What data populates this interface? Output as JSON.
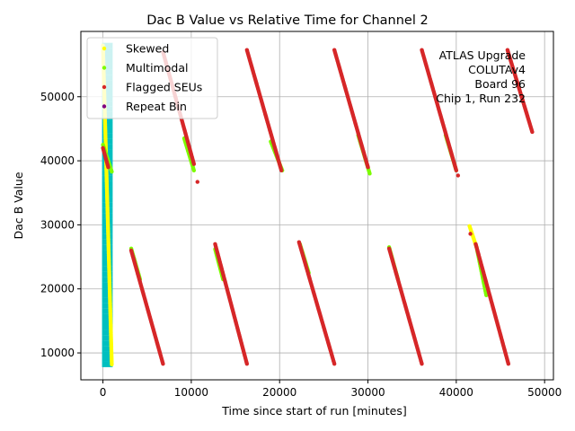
{
  "chart_data": {
    "type": "scatter",
    "title": "Dac B Value vs Relative Time for Channel 2",
    "xlabel": "Time since start of run [minutes]",
    "ylabel": "Dac B Value",
    "xlim": [
      -2500,
      51000
    ],
    "ylim": [
      5800,
      60200
    ],
    "xticks": [
      0,
      10000,
      20000,
      30000,
      40000,
      50000
    ],
    "yticks": [
      10000,
      20000,
      30000,
      40000,
      50000
    ],
    "grid": true,
    "legend_position": "top-left",
    "annotation": [
      "ATLAS Upgrade",
      "COLUTAv4",
      "Board 96",
      "Chip 1, Run 232"
    ],
    "colors": {
      "skewed": "#ffff00",
      "multimodal": "#7cfc00",
      "flagged": "#d62728",
      "repeat": "#800080",
      "dense_band": "#00bfbf",
      "grid": "#b0b0b0"
    },
    "series": [
      {
        "name": "Skewed",
        "color": "#ffff00",
        "segments": [
          {
            "x": [
              0,
              1000
            ],
            "y": [
              58000,
              8200
            ]
          },
          {
            "x": [
              41500,
              42300
            ],
            "y": [
              29800,
              26500
            ]
          }
        ]
      },
      {
        "name": "Multimodal",
        "color": "#7cfc00",
        "segments": [
          {
            "x": [
              0,
              1000
            ],
            "y": [
              42500,
              38300
            ]
          },
          {
            "x": [
              3200,
              4200
            ],
            "y": [
              26300,
              21500
            ]
          },
          {
            "x": [
              9200,
              10300
            ],
            "y": [
              43500,
              38500
            ]
          },
          {
            "x": [
              12700,
              13600
            ],
            "y": [
              26200,
              21500
            ]
          },
          {
            "x": [
              19000,
              20300
            ],
            "y": [
              43000,
              38500
            ]
          },
          {
            "x": [
              22300,
              23300
            ],
            "y": [
              27000,
              22500
            ]
          },
          {
            "x": [
              28900,
              30200
            ],
            "y": [
              44000,
              38000
            ]
          },
          {
            "x": [
              32400,
              33400
            ],
            "y": [
              26500,
              21500
            ]
          },
          {
            "x": [
              38800,
              40000
            ],
            "y": [
              44000,
              38500
            ]
          },
          {
            "x": [
              42300,
              43400
            ],
            "y": [
              26500,
              19000
            ]
          }
        ]
      },
      {
        "name": "Flagged SEUs",
        "color": "#d62728",
        "segments": [
          {
            "x": [
              0,
              600
            ],
            "y": [
              42000,
              39000
            ]
          },
          {
            "x": [
              3200,
              6800
            ],
            "y": [
              26000,
              8300
            ]
          },
          {
            "x": [
              6800,
              10300
            ],
            "y": [
              57000,
              39500
            ]
          },
          {
            "x": [
              12700,
              16300
            ],
            "y": [
              27000,
              8300
            ]
          },
          {
            "x": [
              16300,
              20200
            ],
            "y": [
              57300,
              38500
            ]
          },
          {
            "x": [
              22200,
              26200
            ],
            "y": [
              27300,
              8300
            ]
          },
          {
            "x": [
              26200,
              30000
            ],
            "y": [
              57300,
              39000
            ]
          },
          {
            "x": [
              32400,
              36100
            ],
            "y": [
              26300,
              8300
            ]
          },
          {
            "x": [
              36100,
              40000
            ],
            "y": [
              57300,
              38500
            ]
          },
          {
            "x": [
              42200,
              45900
            ],
            "y": [
              27000,
              8300
            ]
          },
          {
            "x": [
              45800,
              48600
            ],
            "y": [
              57300,
              44500
            ]
          }
        ],
        "points": [
          {
            "x": 10700,
            "y": 36700
          },
          {
            "x": 41600,
            "y": 28600
          },
          {
            "x": 40200,
            "y": 37700
          }
        ]
      },
      {
        "name": "Repeat Bin",
        "color": "#800080",
        "segments": [],
        "points": []
      }
    ]
  }
}
